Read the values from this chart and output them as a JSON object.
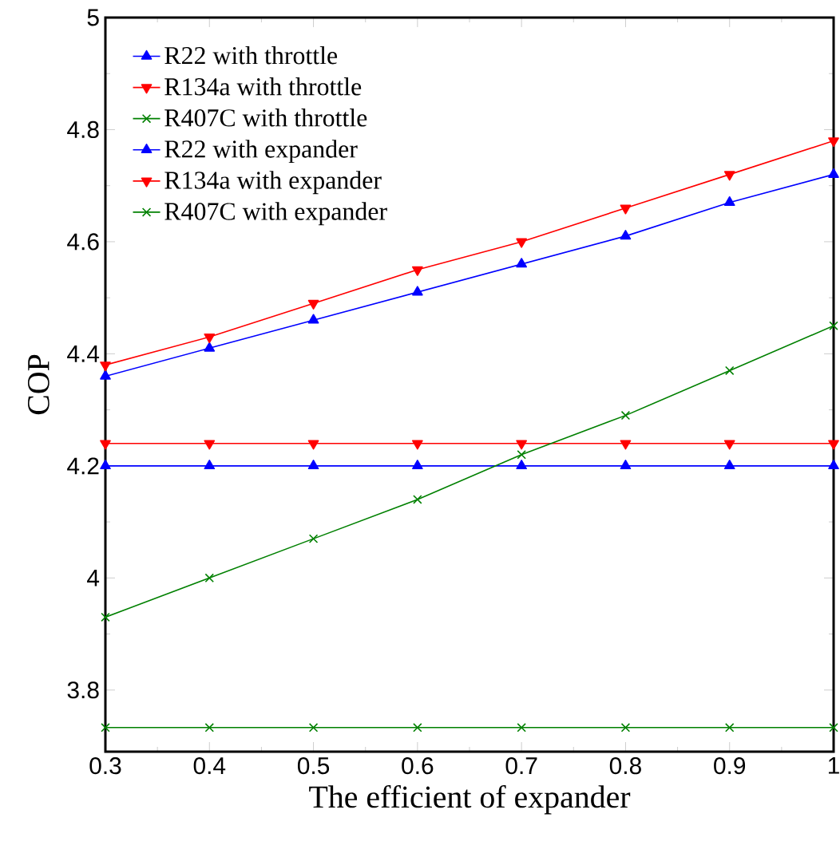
{
  "chart_data": {
    "type": "line",
    "xlabel": "The efficient of expander",
    "ylabel": "COP",
    "x": [
      0.3,
      0.4,
      0.5,
      0.6,
      0.7,
      0.8,
      0.9,
      1
    ],
    "xlim": [
      0.3,
      1
    ],
    "xticks": [
      0.3,
      0.4,
      0.5,
      0.6,
      0.7,
      0.8,
      0.9,
      1
    ],
    "ylim": [
      3.69,
      5
    ],
    "yticks": [
      3.8,
      4,
      4.2,
      4.4,
      4.6,
      4.8,
      5
    ],
    "grid": false,
    "legend": "top left",
    "line_style": "solid",
    "series": [
      {
        "name": "R22 with throttle",
        "color": "#0000ff",
        "marker": "triangle",
        "values": [
          4.2,
          4.2,
          4.2,
          4.2,
          4.2,
          4.2,
          4.2,
          4.2
        ]
      },
      {
        "name": "R134a with throttle",
        "color": "#ff0000",
        "marker": "triangle down",
        "values": [
          4.24,
          4.24,
          4.24,
          4.24,
          4.24,
          4.24,
          4.24,
          4.24
        ]
      },
      {
        "name": "R407C with throttle",
        "color": "#008000",
        "marker": "cross",
        "values": [
          3.733,
          3.733,
          3.733,
          3.733,
          3.733,
          3.733,
          3.733,
          3.733
        ]
      },
      {
        "name": "R22 with expander",
        "color": "#0000ff",
        "marker": "triangle",
        "values": [
          4.36,
          4.41,
          4.46,
          4.51,
          4.56,
          4.61,
          4.67,
          4.72
        ]
      },
      {
        "name": "R134a with expander",
        "color": "#ff0000",
        "marker": "triangle down",
        "values": [
          4.38,
          4.43,
          4.49,
          4.55,
          4.6,
          4.66,
          4.72,
          4.78
        ]
      },
      {
        "name": "R407C with expander",
        "color": "#008000",
        "marker": "cross",
        "values": [
          3.93,
          4.0,
          4.07,
          4.14,
          4.22,
          4.29,
          4.37,
          4.45
        ]
      }
    ]
  }
}
